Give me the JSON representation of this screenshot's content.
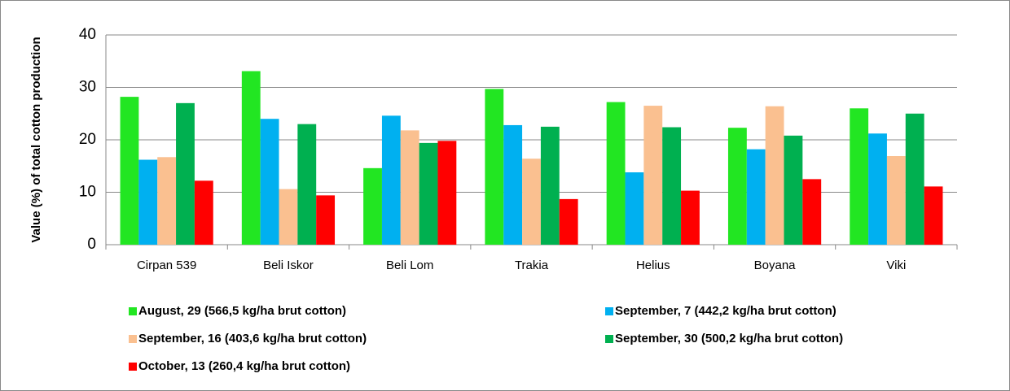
{
  "chart_data": {
    "type": "bar",
    "y_label": "Value (%) of total cotton production",
    "categories": [
      "Cirpan 539",
      "Beli Iskor",
      "Beli Lom",
      "Trakia",
      "Helius",
      "Boyana",
      "Viki"
    ],
    "series": [
      {
        "name": "August, 29 (566,5 kg/ha brut cotton)",
        "color": "#22e622",
        "values": [
          28.2,
          33.1,
          14.6,
          29.7,
          27.2,
          22.3,
          26.0
        ]
      },
      {
        "name": "September, 7 (442,2 kg/ha brut cotton)",
        "color": "#00b0f0",
        "values": [
          16.2,
          24.0,
          24.6,
          22.8,
          13.8,
          18.2,
          21.2
        ]
      },
      {
        "name": "September, 16 (403,6 kg/ha brut cotton)",
        "color": "#fac090",
        "values": [
          16.7,
          10.6,
          21.8,
          16.4,
          26.5,
          26.4,
          16.9
        ]
      },
      {
        "name": "September, 30 (500,2 kg/ha brut cotton)",
        "color": "#00b050",
        "values": [
          27.0,
          23.0,
          19.4,
          22.5,
          22.4,
          20.8,
          25.0
        ]
      },
      {
        "name": "October, 13 (260,4 kg/ha brut cotton)",
        "color": "#ff0000",
        "values": [
          12.2,
          9.4,
          19.8,
          8.7,
          10.3,
          12.5,
          11.1
        ]
      }
    ],
    "ylim": [
      0,
      40
    ],
    "yticks": [
      0,
      10,
      20,
      30,
      40
    ],
    "grid": true,
    "legend": "bottom"
  }
}
